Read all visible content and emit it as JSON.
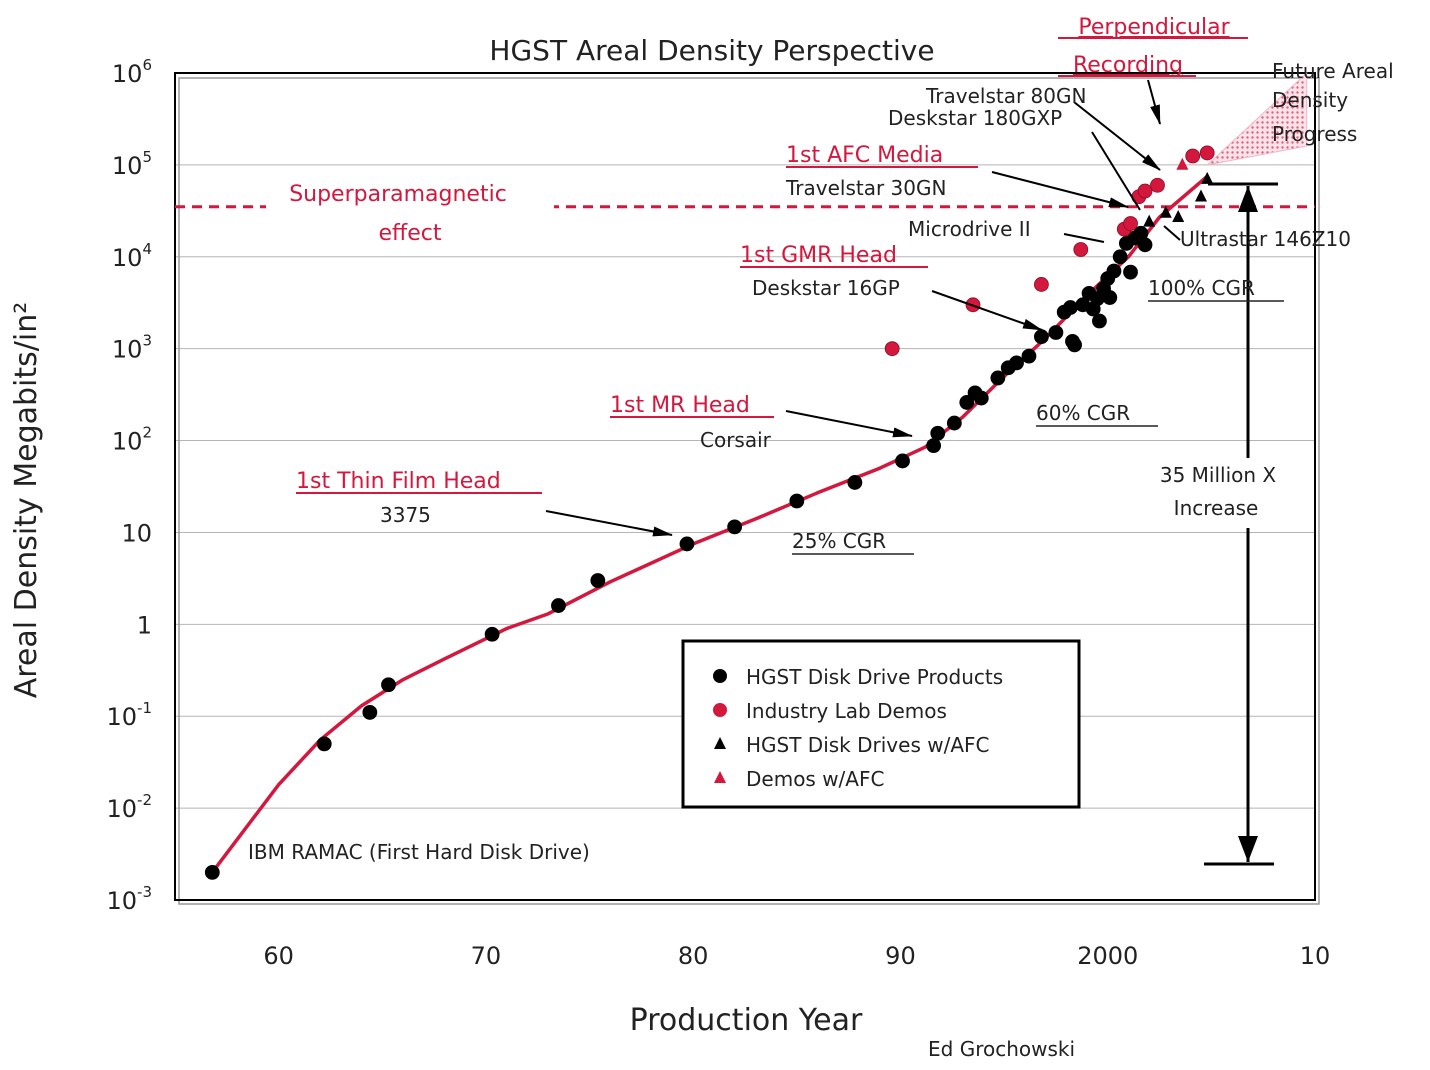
{
  "chart_data": {
    "type": "scatter",
    "title": "HGST Areal Density Perspective",
    "xlabel": "Production Year",
    "ylabel": "Areal Density Megabits/in²",
    "y_scale": "log",
    "xlim": [
      1955,
      2010
    ],
    "ylim": [
      0.001,
      1000000
    ],
    "x_ticks": [
      {
        "value": 1960,
        "label": "60"
      },
      {
        "value": 1970,
        "label": "70"
      },
      {
        "value": 1980,
        "label": "80"
      },
      {
        "value": 1990,
        "label": "90"
      },
      {
        "value": 2000,
        "label": "2000"
      },
      {
        "value": 2010,
        "label": "10"
      }
    ],
    "y_ticks": [
      {
        "value": 0.001,
        "base": "10",
        "exp": "-3"
      },
      {
        "value": 0.01,
        "base": "10",
        "exp": "-2"
      },
      {
        "value": 0.1,
        "base": "10",
        "exp": "-1"
      },
      {
        "value": 1,
        "base": "1",
        "exp": ""
      },
      {
        "value": 10,
        "base": "10",
        "exp": ""
      },
      {
        "value": 100,
        "base": "10",
        "exp": "2"
      },
      {
        "value": 1000,
        "base": "10",
        "exp": "3"
      },
      {
        "value": 10000,
        "base": "10",
        "exp": "4"
      },
      {
        "value": 100000,
        "base": "10",
        "exp": "5"
      },
      {
        "value": 1000000,
        "base": "10",
        "exp": "6"
      }
    ],
    "grid": "horizontal",
    "legend_position": "bottom-center",
    "series": [
      {
        "name": "HGST Disk Drive Products",
        "marker": "circle",
        "color": "#000000",
        "points": [
          [
            1956.8,
            0.002
          ],
          [
            1962.2,
            0.05
          ],
          [
            1964.4,
            0.11
          ],
          [
            1965.3,
            0.22
          ],
          [
            1970.3,
            0.78
          ],
          [
            1973.5,
            1.6
          ],
          [
            1975.4,
            3.0
          ],
          [
            1979.7,
            7.5
          ],
          [
            1982,
            11.5
          ],
          [
            1985,
            22
          ],
          [
            1987.8,
            35
          ],
          [
            1990.1,
            60
          ],
          [
            1991.6,
            88
          ],
          [
            1991.8,
            120
          ],
          [
            1992.6,
            155
          ],
          [
            1993.2,
            260
          ],
          [
            1993.6,
            330
          ],
          [
            1993.9,
            290
          ],
          [
            1994.7,
            480
          ],
          [
            1995.2,
            620
          ],
          [
            1995.6,
            700
          ],
          [
            1996.2,
            830
          ],
          [
            1996.8,
            1350
          ],
          [
            1997.5,
            1500
          ],
          [
            1997.9,
            2500
          ],
          [
            1998.2,
            2800
          ],
          [
            1998.3,
            1200
          ],
          [
            1998.4,
            1100
          ],
          [
            1998.8,
            3000
          ],
          [
            1999.1,
            4000
          ],
          [
            1999.3,
            2700
          ],
          [
            1999.5,
            3500
          ],
          [
            1999.6,
            2000
          ],
          [
            1999.8,
            4500
          ],
          [
            2000,
            5800
          ],
          [
            2000.1,
            3600
          ],
          [
            2000.3,
            7000
          ],
          [
            2000.6,
            10000
          ],
          [
            2000.9,
            14000
          ],
          [
            2001.1,
            6800
          ],
          [
            2001.3,
            16000
          ],
          [
            2001.6,
            18000
          ],
          [
            2001.8,
            13500
          ]
        ]
      },
      {
        "name": "Industry Lab Demos",
        "marker": "circle",
        "color": "#d4173c",
        "points": [
          [
            1989.6,
            1000
          ],
          [
            1993.5,
            3000
          ],
          [
            1996.8,
            5000
          ],
          [
            1998.7,
            12000
          ],
          [
            2000.8,
            20000
          ],
          [
            2001.1,
            23000
          ],
          [
            2001.5,
            45000
          ],
          [
            2001.8,
            52000
          ],
          [
            2002.4,
            60000
          ],
          [
            2004.1,
            125000
          ],
          [
            2004.8,
            135000
          ]
        ]
      },
      {
        "name": "HGST Disk Drives w/AFC",
        "marker": "triangle",
        "color": "#000000",
        "points": [
          [
            2002,
            24000
          ],
          [
            2002.8,
            30000
          ],
          [
            2003.4,
            27000
          ],
          [
            2004.5,
            45000
          ],
          [
            2004.8,
            70000
          ]
        ]
      },
      {
        "name": "Demos w/AFC",
        "marker": "triangle",
        "color": "#d4173c",
        "points": [
          [
            2003.6,
            100000
          ]
        ]
      }
    ],
    "trend_line": {
      "color": "#d4173c",
      "points": [
        [
          1956.8,
          0.002
        ],
        [
          1960,
          0.018
        ],
        [
          1962,
          0.055
        ],
        [
          1964,
          0.13
        ],
        [
          1966,
          0.25
        ],
        [
          1968,
          0.42
        ],
        [
          1971,
          0.9
        ],
        [
          1973,
          1.3
        ],
        [
          1976,
          2.9
        ],
        [
          1980,
          7.5
        ],
        [
          1983,
          14
        ],
        [
          1986,
          27
        ],
        [
          1989,
          50
        ],
        [
          1991.2,
          85
        ],
        [
          1993,
          180
        ],
        [
          1995,
          500
        ],
        [
          1997,
          1300
        ],
        [
          1999,
          3800
        ],
        [
          2001,
          10000
        ],
        [
          2002.5,
          27000
        ],
        [
          2004.8,
          75000
        ]
      ]
    },
    "future_wedge": {
      "color": "#f3b6c8",
      "points": [
        [
          2004.8,
          100000
        ],
        [
          2009.6,
          1000000
        ],
        [
          2009.6,
          160000
        ]
      ]
    },
    "superparamagnetic_limit": 35000,
    "annotations": {
      "superparamagnetic": [
        "Superparamagnetic",
        "effect"
      ],
      "perpendicular": [
        "Perpendicular",
        "Recording"
      ],
      "future": [
        "Future Areal",
        "Density",
        "Progress"
      ],
      "travelstar80gn": "Travelstar 80GN",
      "deskstar180gxp": "Deskstar 180GXP",
      "afc_media": "1st AFC Media",
      "travelstar30gn": "Travelstar 30GN",
      "microdrive": "Microdrive II",
      "ultrastar": "Ultrastar 146Z10",
      "gmr_head": "1st GMR Head",
      "deskstar16gp": "Deskstar 16GP",
      "cgr100": "100% CGR",
      "mr_head": "1st MR Head",
      "corsair": "Corsair",
      "cgr60": "60% CGR",
      "increase": [
        "35 Million X",
        "Increase"
      ],
      "thin_film": "1st Thin Film Head",
      "model3375": "3375",
      "cgr25": "25% CGR",
      "ramac": "IBM RAMAC (First Hard Disk Drive)",
      "author": "Ed Grochowski"
    }
  }
}
